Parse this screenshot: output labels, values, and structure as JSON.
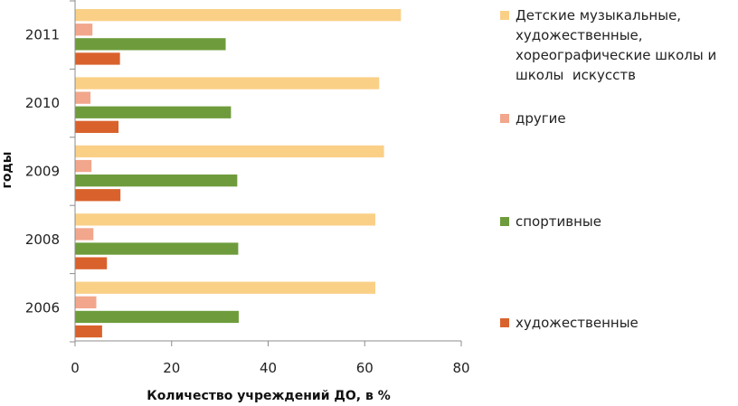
{
  "chart_data": {
    "type": "bar",
    "orientation": "horizontal",
    "xlabel": "Количество учреждений ДО, в %",
    "ylabel": "годы",
    "xlim": [
      0,
      80
    ],
    "xticks": [
      "0",
      "20",
      "40",
      "60",
      "80"
    ],
    "grid": false,
    "legend_position": "right",
    "categories": [
      "2011",
      "2010",
      "2009",
      "2008",
      "2006"
    ],
    "series": [
      {
        "name": "Детские музыкальные, художественные, хореографические школы и школы  искусств",
        "color": "#fad087",
        "values": [
          67.5,
          63,
          64,
          62.2,
          62.2
        ]
      },
      {
        "name": "другие",
        "color": "#f2a68c",
        "values": [
          3.6,
          3.2,
          3.4,
          3.8,
          4.4
        ]
      },
      {
        "name": "спортивные",
        "color": "#6e9c3c",
        "values": [
          31.2,
          32.3,
          33.6,
          33.8,
          33.9
        ]
      },
      {
        "name": "художественные",
        "color": "#d9622c",
        "values": [
          9.3,
          9.0,
          9.4,
          6.6,
          5.6
        ]
      }
    ]
  }
}
